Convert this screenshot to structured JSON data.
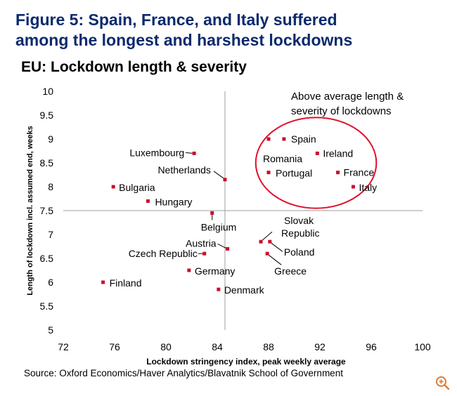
{
  "figure_title": {
    "line1": "Figure 5: Spain, France, and Italy suffered",
    "line2": "among the longest and harshest lockdowns"
  },
  "source": "Source: Oxford Economics/Haver Analytics/Blavatnik School of Government",
  "zoom_icon": "zoom-in-icon",
  "colors": {
    "title": "#0b2a6e",
    "point": "#c8102e",
    "ellipse": "#e3102a",
    "axis": "#9e9e9e"
  },
  "chart_data": {
    "type": "scatter",
    "title": "EU: Lockdown length & severity",
    "xlabel": "Lockdown stringency index, peak weekly average",
    "ylabel": "Length of lockdown incl. assumed end, weeks",
    "xlim": [
      72,
      100
    ],
    "ylim": [
      5,
      10
    ],
    "xticks": [
      "72",
      "76",
      "80",
      "84",
      "88",
      "92",
      "96",
      "100"
    ],
    "yticks": [
      "5",
      "5.5",
      "6",
      "6.5",
      "7",
      "7.5",
      "8",
      "8.5",
      "9",
      "9.5",
      "10"
    ],
    "crosshair": {
      "x": 84.6,
      "y": 7.5
    },
    "annotation": {
      "line1": "Above average length &",
      "line2": "severity of lockdowns"
    },
    "highlight_ellipse": {
      "cx": 91.7,
      "cy": 8.5,
      "rx": 4.7,
      "ry": 0.95
    },
    "points": [
      {
        "label": "Spain",
        "x": 89.2,
        "y": 9.0
      },
      {
        "label": "Romania",
        "x": 88.0,
        "y": 9.0
      },
      {
        "label": "Ireland",
        "x": 91.8,
        "y": 8.7
      },
      {
        "label": "Portugal",
        "x": 88.0,
        "y": 8.3
      },
      {
        "label": "France",
        "x": 93.4,
        "y": 8.3
      },
      {
        "label": "Italy",
        "x": 94.6,
        "y": 8.0
      },
      {
        "label": "Luxembourg",
        "x": 82.2,
        "y": 8.7
      },
      {
        "label": "Netherlands",
        "x": 84.6,
        "y": 8.15
      },
      {
        "label": "Bulgaria",
        "x": 75.9,
        "y": 8.0
      },
      {
        "label": "Hungary",
        "x": 78.6,
        "y": 7.7
      },
      {
        "label": "Belgium",
        "x": 83.6,
        "y": 7.45
      },
      {
        "label": "Slovak Republic",
        "x": 87.4,
        "y": 6.85
      },
      {
        "label": "Austria",
        "x": 84.8,
        "y": 6.7
      },
      {
        "label": "Poland",
        "x": 88.1,
        "y": 6.85
      },
      {
        "label": "Czech Republic",
        "x": 83.0,
        "y": 6.6
      },
      {
        "label": "Greece",
        "x": 87.9,
        "y": 6.6
      },
      {
        "label": "Germany",
        "x": 81.8,
        "y": 6.25
      },
      {
        "label": "Finland",
        "x": 75.1,
        "y": 6.0
      },
      {
        "label": "Denmark",
        "x": 84.1,
        "y": 5.85
      }
    ]
  }
}
